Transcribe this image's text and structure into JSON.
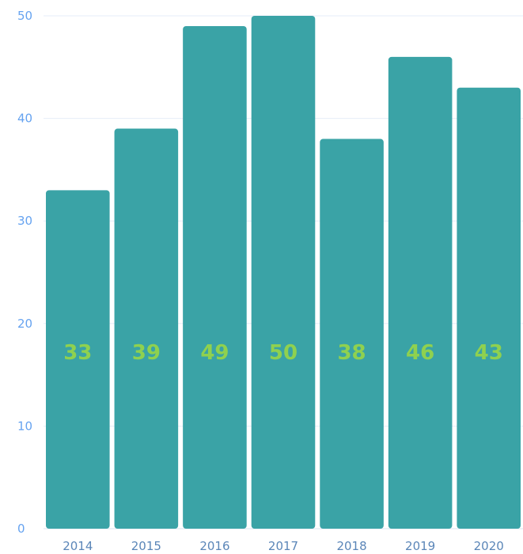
{
  "chart_data": {
    "type": "bar",
    "title": "",
    "xlabel": "",
    "ylabel": "",
    "categories": [
      "2014",
      "2015",
      "2016",
      "2017",
      "2018",
      "2019",
      "2020"
    ],
    "values": [
      33,
      39,
      49,
      50,
      38,
      46,
      43
    ],
    "data_labels": [
      "33",
      "39",
      "49",
      "50",
      "38",
      "46",
      "43"
    ],
    "y_ticks": [
      0,
      10,
      20,
      30,
      40,
      50
    ],
    "ylim": [
      0,
      50
    ],
    "grid": true,
    "legend": "none"
  },
  "colors": {
    "bar": "#3aa3a6",
    "data_label": "#8fd14f",
    "title": "#8fd14f",
    "y_tick": "#66a3f0",
    "x_tick": "#5b86b8",
    "background": "#ffffff"
  }
}
